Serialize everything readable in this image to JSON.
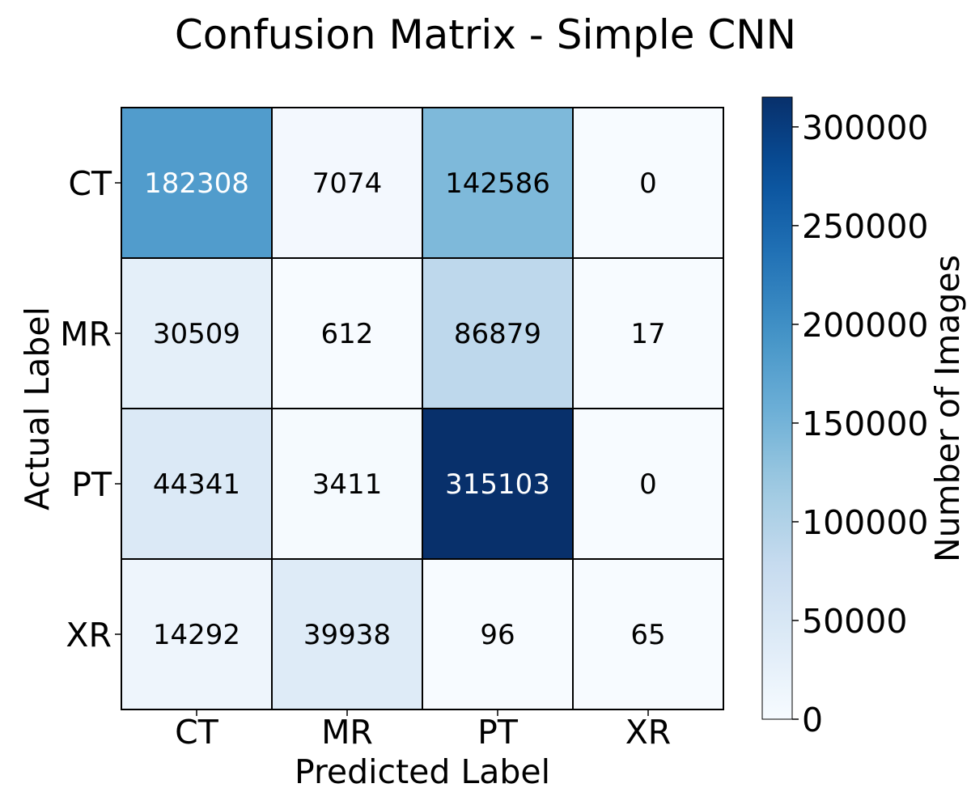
{
  "chart_data": {
    "type": "heatmap",
    "title": "Confusion Matrix - Simple CNN",
    "xlabel": "Predicted Label",
    "ylabel": "Actual Label",
    "x_categories": [
      "CT",
      "MR",
      "PT",
      "XR"
    ],
    "y_categories": [
      "CT",
      "MR",
      "PT",
      "XR"
    ],
    "values": [
      [
        182308,
        7074,
        142586,
        0
      ],
      [
        30509,
        612,
        86879,
        17
      ],
      [
        44341,
        3411,
        315103,
        0
      ],
      [
        14292,
        39938,
        96,
        65
      ]
    ],
    "colorbar": {
      "label": "Number of Images",
      "range": [
        0,
        315103
      ],
      "ticks": [
        "0",
        "50000",
        "100000",
        "150000",
        "200000",
        "250000",
        "300000"
      ],
      "tick_values": [
        0,
        50000,
        100000,
        150000,
        200000,
        250000,
        300000
      ]
    },
    "colormap": "Blues",
    "colors": {
      "low": "#f7fbff",
      "high": "#08306b",
      "text_dark": "#000000",
      "text_light": "#ffffff"
    }
  }
}
